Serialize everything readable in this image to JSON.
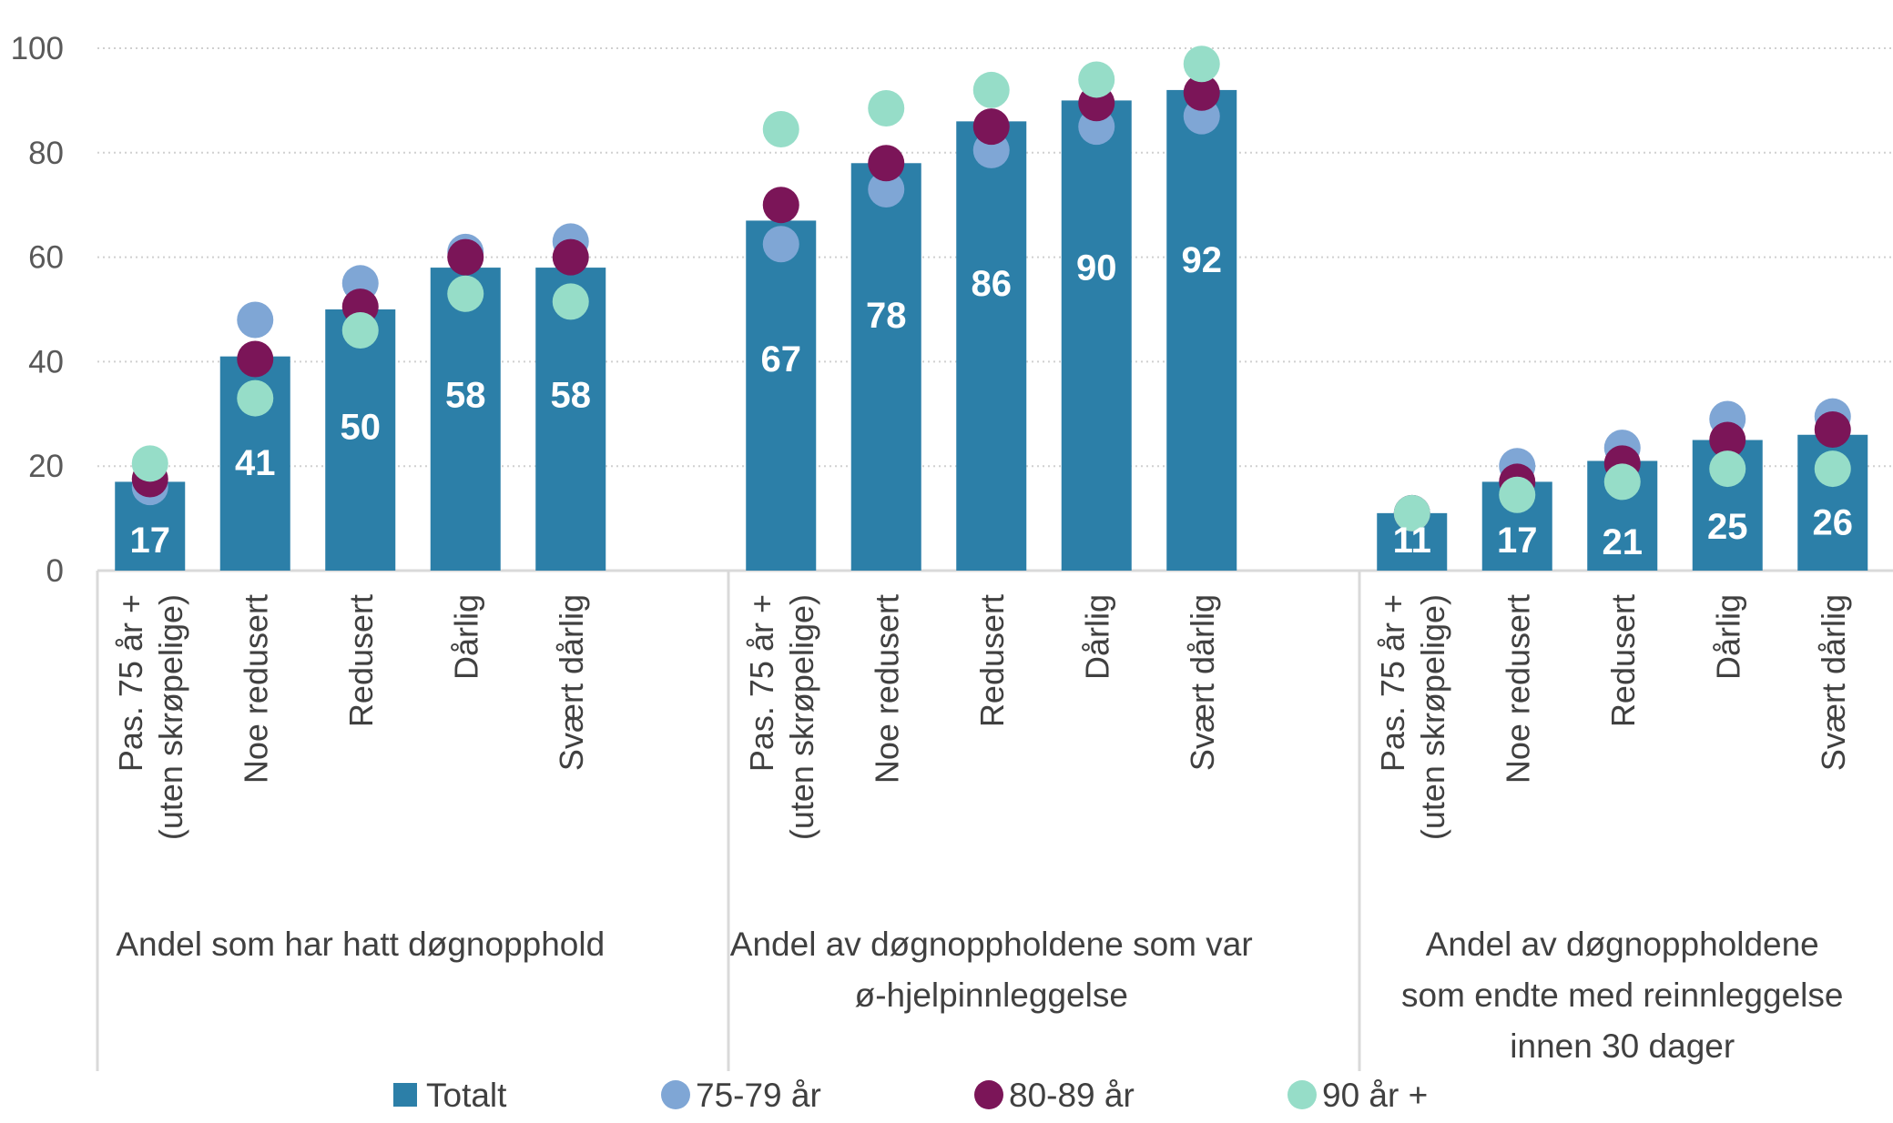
{
  "chart_data": {
    "type": "bar",
    "ylim": [
      0,
      100
    ],
    "yticks": [
      0,
      20,
      40,
      60,
      80,
      100
    ],
    "grid": true,
    "legend_position": "bottom",
    "groups": [
      {
        "label": "Andel  som har hatt døgnopphold",
        "categories": [
          [
            "Pas. 75 år +",
            "(uten skrøpelige)"
          ],
          [
            "Noe redusert"
          ],
          [
            "Redusert"
          ],
          [
            "Dårlig"
          ],
          [
            "Svært dårlig"
          ]
        ],
        "totalt": [
          17,
          41,
          50,
          58,
          58
        ],
        "75-79": [
          16,
          48,
          55,
          61,
          63
        ],
        "80-89": [
          17.5,
          40.5,
          50.5,
          60,
          60
        ],
        "90+": [
          20.5,
          33,
          46,
          53,
          51.5
        ]
      },
      {
        "label": "Andel av døgnoppholdene som var ø-hjelpinnleggelse",
        "label_lines": [
          "Andel av døgnoppholdene som var",
          "ø-hjelpinnleggelse"
        ],
        "categories": [
          [
            "Pas. 75 år +",
            "(uten skrøpelige)"
          ],
          [
            "Noe redusert"
          ],
          [
            "Redusert"
          ],
          [
            "Dårlig"
          ],
          [
            "Svært dårlig"
          ]
        ],
        "totalt": [
          67,
          78,
          86,
          90,
          92
        ],
        "75-79": [
          62.5,
          73,
          80.5,
          85,
          87
        ],
        "80-89": [
          70,
          78,
          85,
          89.5,
          91.5
        ],
        "90+": [
          84.5,
          88.5,
          92,
          94,
          97
        ]
      },
      {
        "label": "Andel av døgnoppholdene som endte med reinnleggelse innen 30 dager",
        "label_lines": [
          "Andel av døgnoppholdene",
          "som endte med reinnleggelse",
          "innen 30 dager"
        ],
        "categories": [
          [
            "Pas. 75 år +",
            "(uten skrøpelige)"
          ],
          [
            "Noe redusert"
          ],
          [
            "Redusert"
          ],
          [
            "Dårlig"
          ],
          [
            "Svært dårlig"
          ]
        ],
        "totalt": [
          11,
          17,
          21,
          25,
          26
        ],
        "75-79": [
          11,
          20,
          23.5,
          29,
          29.5
        ],
        "80-89": [
          11,
          17,
          20.5,
          25,
          27
        ],
        "90+": [
          11,
          14.5,
          17,
          19.5,
          19.5
        ]
      }
    ],
    "series": [
      {
        "key": "totalt",
        "name": "Totalt",
        "color": "#2C7FA8",
        "mark": "bar"
      },
      {
        "key": "75-79",
        "name": "75-79 år",
        "color": "#7FA6D5",
        "mark": "dot"
      },
      {
        "key": "80-89",
        "name": "80-89 år",
        "color": "#7B1558",
        "mark": "dot"
      },
      {
        "key": "90+",
        "name": "90 år +",
        "color": "#96DDC8",
        "mark": "dot"
      }
    ]
  }
}
